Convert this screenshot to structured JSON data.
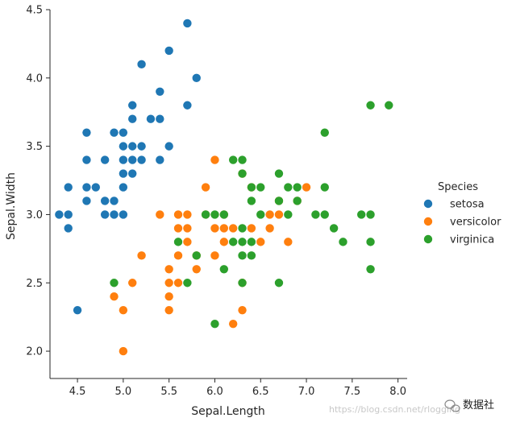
{
  "chart_data": {
    "type": "scatter",
    "xlabel": "Sepal.Length",
    "ylabel": "Sepal.Width",
    "xlim": [
      4.2,
      8.1
    ],
    "ylim": [
      1.8,
      4.5
    ],
    "xticks": [
      "4.5",
      "5.0",
      "5.5",
      "6.0",
      "6.5",
      "7.0",
      "7.5",
      "8.0"
    ],
    "yticks": [
      "2.0",
      "2.5",
      "3.0",
      "3.5",
      "4.0",
      "4.5"
    ],
    "legend_title": "Species",
    "legend_position": "right",
    "series": [
      {
        "name": "setosa",
        "color": "#1f77b4",
        "points": [
          [
            5.7,
            4.4
          ],
          [
            5.5,
            4.2
          ],
          [
            5.2,
            4.1
          ],
          [
            5.8,
            4.0
          ],
          [
            5.4,
            3.9
          ],
          [
            5.1,
            3.8
          ],
          [
            5.7,
            3.8
          ],
          [
            5.1,
            3.7
          ],
          [
            5.3,
            3.7
          ],
          [
            5.4,
            3.7
          ],
          [
            4.9,
            3.6
          ],
          [
            5.0,
            3.6
          ],
          [
            4.6,
            3.6
          ],
          [
            5.0,
            3.5
          ],
          [
            5.1,
            3.5
          ],
          [
            5.2,
            3.5
          ],
          [
            5.5,
            3.5
          ],
          [
            4.6,
            3.4
          ],
          [
            4.8,
            3.4
          ],
          [
            5.0,
            3.4
          ],
          [
            5.1,
            3.4
          ],
          [
            5.2,
            3.4
          ],
          [
            5.4,
            3.4
          ],
          [
            5.0,
            3.3
          ],
          [
            5.1,
            3.3
          ],
          [
            4.4,
            3.2
          ],
          [
            4.6,
            3.2
          ],
          [
            4.7,
            3.2
          ],
          [
            5.0,
            3.2
          ],
          [
            4.6,
            3.1
          ],
          [
            4.8,
            3.1
          ],
          [
            4.9,
            3.1
          ],
          [
            4.3,
            3.0
          ],
          [
            4.4,
            3.0
          ],
          [
            4.8,
            3.0
          ],
          [
            4.9,
            3.0
          ],
          [
            5.0,
            3.0
          ],
          [
            4.4,
            2.9
          ],
          [
            4.5,
            2.3
          ]
        ]
      },
      {
        "name": "versicolor",
        "color": "#ff7f0e",
        "points": [
          [
            6.0,
            3.4
          ],
          [
            5.9,
            3.2
          ],
          [
            7.0,
            3.2
          ],
          [
            6.4,
            3.2
          ],
          [
            6.3,
            3.3
          ],
          [
            6.7,
            3.1
          ],
          [
            6.9,
            3.1
          ],
          [
            6.6,
            3.0
          ],
          [
            5.4,
            3.0
          ],
          [
            5.6,
            3.0
          ],
          [
            5.7,
            3.0
          ],
          [
            5.9,
            3.0
          ],
          [
            6.1,
            3.0
          ],
          [
            6.7,
            3.0
          ],
          [
            5.6,
            2.9
          ],
          [
            5.7,
            2.9
          ],
          [
            6.1,
            2.9
          ],
          [
            6.2,
            2.9
          ],
          [
            6.4,
            2.9
          ],
          [
            6.0,
            2.9
          ],
          [
            6.6,
            2.9
          ],
          [
            6.8,
            2.8
          ],
          [
            6.1,
            2.8
          ],
          [
            5.7,
            2.8
          ],
          [
            6.5,
            2.8
          ],
          [
            5.8,
            2.7
          ],
          [
            6.0,
            2.7
          ],
          [
            5.6,
            2.7
          ],
          [
            5.2,
            2.7
          ],
          [
            6.3,
            2.5
          ],
          [
            5.5,
            2.6
          ],
          [
            5.8,
            2.6
          ],
          [
            5.5,
            2.5
          ],
          [
            5.6,
            2.5
          ],
          [
            5.1,
            2.5
          ],
          [
            4.9,
            2.4
          ],
          [
            5.5,
            2.4
          ],
          [
            5.0,
            2.3
          ],
          [
            5.5,
            2.3
          ],
          [
            6.3,
            2.3
          ],
          [
            6.2,
            2.2
          ],
          [
            5.0,
            2.0
          ]
        ]
      },
      {
        "name": "virginica",
        "color": "#2ca02c",
        "points": [
          [
            7.7,
            3.8
          ],
          [
            7.9,
            3.8
          ],
          [
            7.2,
            3.6
          ],
          [
            6.2,
            3.4
          ],
          [
            6.3,
            3.4
          ],
          [
            6.3,
            3.3
          ],
          [
            6.7,
            3.3
          ],
          [
            6.4,
            3.2
          ],
          [
            6.5,
            3.2
          ],
          [
            6.8,
            3.2
          ],
          [
            6.9,
            3.2
          ],
          [
            7.2,
            3.2
          ],
          [
            6.4,
            3.1
          ],
          [
            6.7,
            3.1
          ],
          [
            6.9,
            3.1
          ],
          [
            5.9,
            3.0
          ],
          [
            6.0,
            3.0
          ],
          [
            6.1,
            3.0
          ],
          [
            6.5,
            3.0
          ],
          [
            6.8,
            3.0
          ],
          [
            7.1,
            3.0
          ],
          [
            7.2,
            3.0
          ],
          [
            7.6,
            3.0
          ],
          [
            7.7,
            3.0
          ],
          [
            6.3,
            2.9
          ],
          [
            7.3,
            2.9
          ],
          [
            5.6,
            2.8
          ],
          [
            6.2,
            2.8
          ],
          [
            6.3,
            2.8
          ],
          [
            6.4,
            2.8
          ],
          [
            7.4,
            2.8
          ],
          [
            7.7,
            2.8
          ],
          [
            5.8,
            2.7
          ],
          [
            6.3,
            2.7
          ],
          [
            6.4,
            2.7
          ],
          [
            6.1,
            2.6
          ],
          [
            7.7,
            2.6
          ],
          [
            4.9,
            2.5
          ],
          [
            5.7,
            2.5
          ],
          [
            6.3,
            2.5
          ],
          [
            6.7,
            2.5
          ],
          [
            6.0,
            2.2
          ]
        ]
      }
    ]
  },
  "watermark": {
    "url": "https://blog.csdn.net/rlogging",
    "brand": "数据社"
  }
}
